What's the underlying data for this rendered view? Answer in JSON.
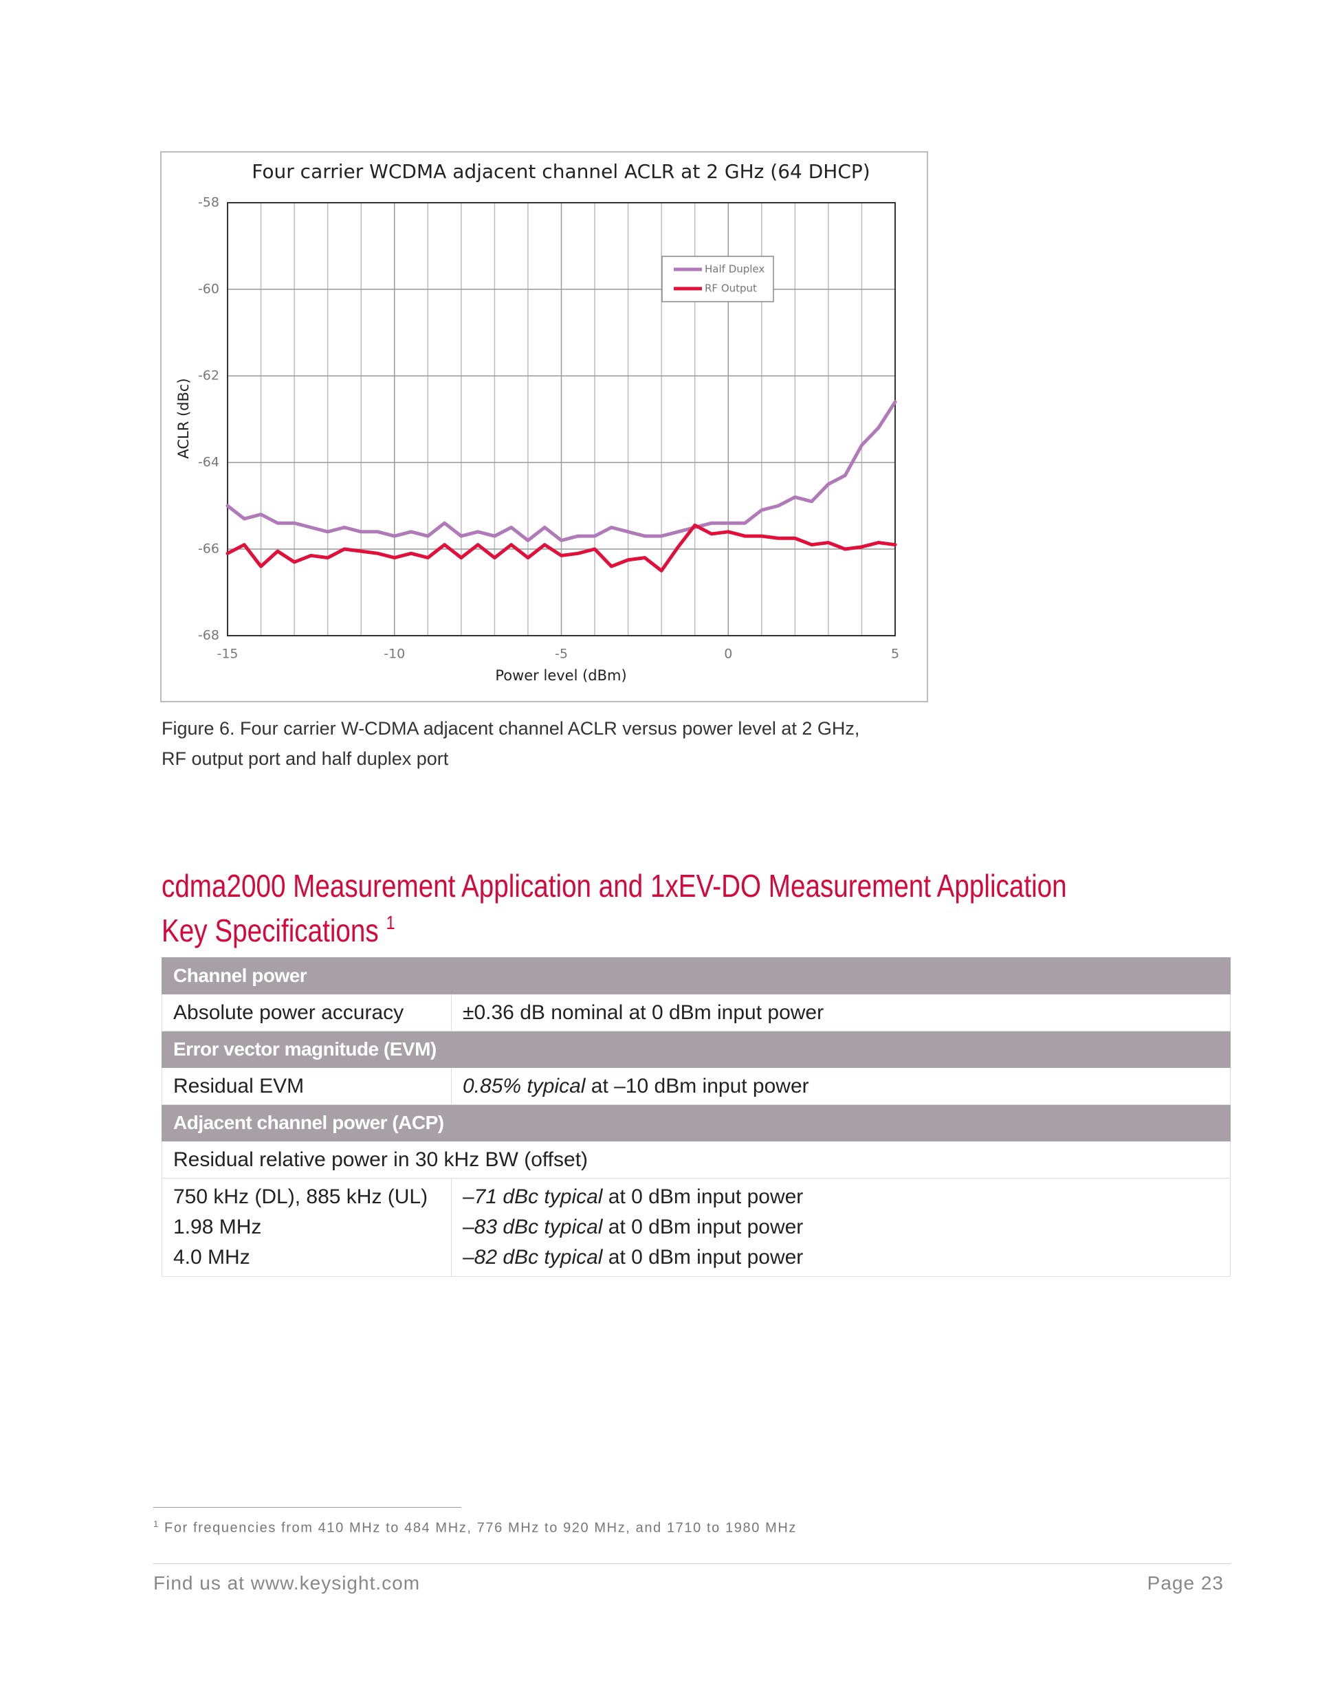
{
  "chart_data": {
    "type": "line",
    "title": "Four carrier WCDMA adjacent channel ACLR at 2 GHz (64 DHCP)",
    "x_label": "Power level (dBm)",
    "y_label": "ACLR (dBc)",
    "x": [
      -15,
      -14.5,
      -14,
      -13.5,
      -13,
      -12.5,
      -12,
      -11.5,
      -11,
      -10.5,
      -10,
      -9.5,
      -9,
      -8.5,
      -8,
      -7.5,
      -7,
      -6.5,
      -6,
      -5.5,
      -5,
      -4.5,
      -4,
      -3.5,
      -3,
      -2.5,
      -2,
      -1.5,
      -1,
      -0.5,
      0,
      0.5,
      1,
      1.5,
      2,
      2.5,
      3,
      3.5,
      4,
      4.5,
      5
    ],
    "series": [
      {
        "name": "Half Duplex",
        "color": "#b07ab8",
        "values": [
          -65.0,
          -65.3,
          -65.2,
          -65.4,
          -65.4,
          -65.5,
          -65.6,
          -65.5,
          -65.6,
          -65.6,
          -65.7,
          -65.6,
          -65.7,
          -65.4,
          -65.7,
          -65.6,
          -65.7,
          -65.5,
          -65.8,
          -65.5,
          -65.8,
          -65.7,
          -65.7,
          -65.5,
          -65.6,
          -65.7,
          -65.7,
          -65.6,
          -65.5,
          -65.4,
          -65.4,
          -65.4,
          -65.1,
          -65.0,
          -64.8,
          -64.9,
          -64.5,
          -64.3,
          -63.6,
          -63.2,
          -62.6
        ]
      },
      {
        "name": "RF Output",
        "color": "#e0103a",
        "values": [
          -66.1,
          -65.9,
          -66.4,
          -66.05,
          -66.3,
          -66.15,
          -66.2,
          -66.0,
          -66.05,
          -66.1,
          -66.2,
          -66.1,
          -66.2,
          -65.9,
          -66.2,
          -65.9,
          -66.2,
          -65.9,
          -66.2,
          -65.9,
          -66.15,
          -66.1,
          -66.0,
          -66.4,
          -66.25,
          -66.2,
          -66.5,
          -65.95,
          -65.45,
          -65.65,
          -65.6,
          -65.7,
          -65.7,
          -65.75,
          -65.75,
          -65.9,
          -65.85,
          -66.0,
          -65.95,
          -65.85,
          -65.9
        ]
      }
    ],
    "xlim": [
      -15,
      5
    ],
    "ylim": [
      -68,
      -58
    ],
    "xticks": [
      -15,
      -10,
      -5,
      0,
      5
    ],
    "yticks": [
      -68,
      -66,
      -64,
      -62,
      -60,
      -58
    ],
    "grid": true,
    "legend": "upper-right"
  },
  "caption": [
    "Figure 6. Four carrier W-CDMA adjacent channel ACLR versus power level at 2 GHz,",
    "RF output port and half duplex port"
  ],
  "heading": {
    "lines": [
      "cdma2000 Measurement Application and 1xEV-DO Measurement Application",
      "Key Specifications"
    ],
    "footnote_ref": "1"
  },
  "table": {
    "sections": [
      {
        "header": "Channel power",
        "rows": [
          [
            "Absolute power accuracy",
            "±0.36 dB nominal at 0 dBm input power"
          ]
        ]
      },
      {
        "header": "Error vector magnitude (EVM)",
        "rows": [
          [
            "Residual EVM",
            {
              "italic": "0.85% typical",
              "text": " at –10 dBm input power"
            }
          ]
        ]
      },
      {
        "header": "Adjacent channel power (ACP)",
        "rows": [
          [
            "Residual relative power in 30 kHz BW (offset)"
          ],
          [
            [
              "750 kHz (DL), 885 kHz (UL)",
              "1.98 MHz",
              "4.0 MHz"
            ],
            [
              {
                "italic": "–71 dBc typical",
                "text": " at 0 dBm input power"
              },
              {
                "italic": "–83 dBc typical",
                "text": " at 0 dBm input power"
              },
              {
                "italic": "–82 dBc typical",
                "text": " at 0 dBm input power"
              }
            ]
          ]
        ]
      }
    ]
  },
  "footnote": {
    "mark": "1",
    "text": "For frequencies from 410 MHz to 484 MHz, 776 MHz to 920 MHz, and 1710 to 1980 MHz"
  },
  "footer": {
    "link": "Find us at www.keysight.com",
    "page": "Page 23"
  }
}
